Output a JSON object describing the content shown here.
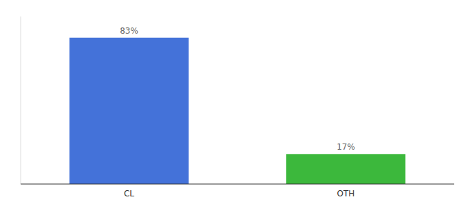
{
  "chart_data": {
    "type": "bar",
    "categories": [
      "CL",
      "OTH"
    ],
    "values": [
      83,
      17
    ],
    "value_labels": [
      "83%",
      "17%"
    ],
    "colors": [
      "#4472d9",
      "#3cb83c"
    ],
    "ylim": [
      0,
      95
    ],
    "data_labels": true,
    "tick_labels": "x"
  }
}
